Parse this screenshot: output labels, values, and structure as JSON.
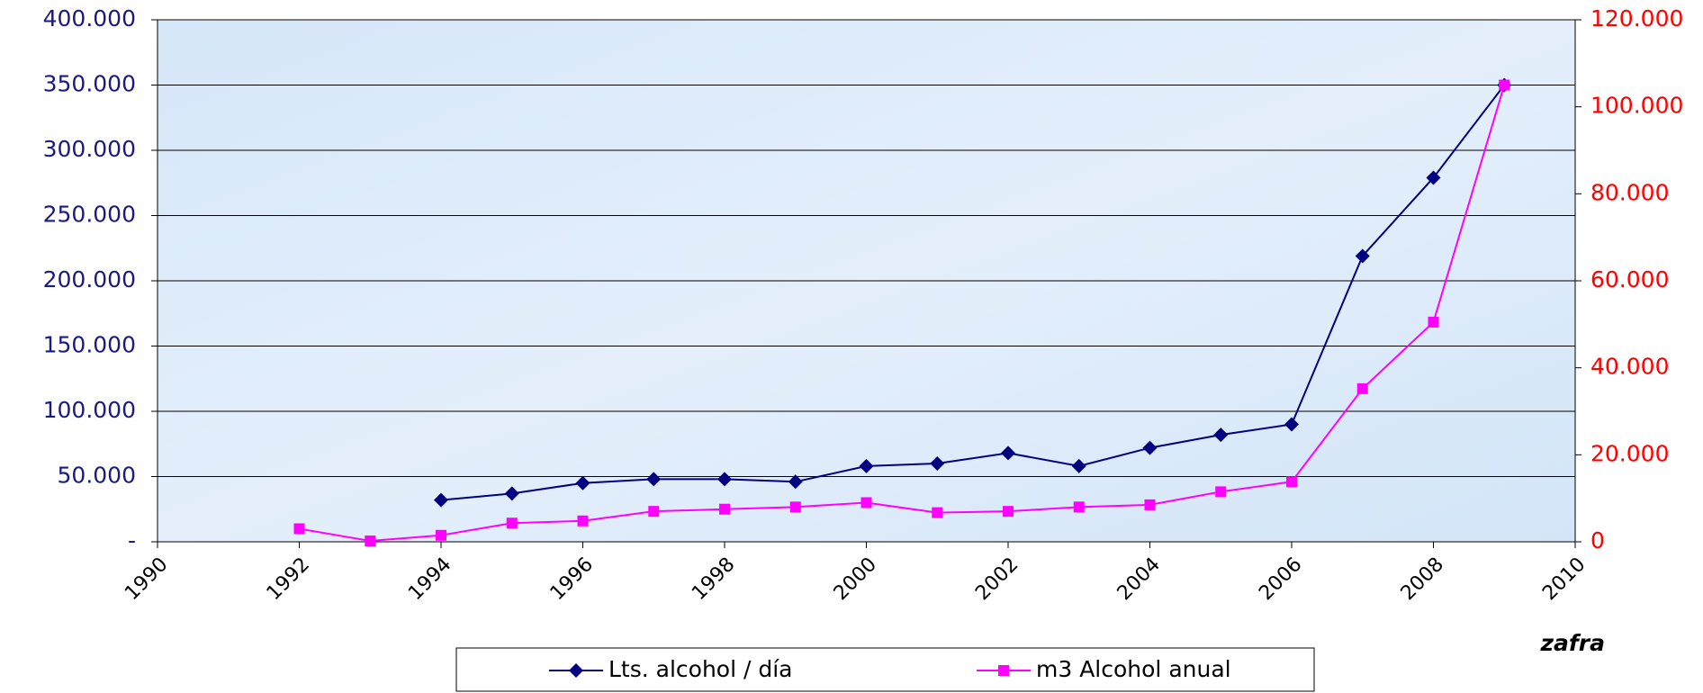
{
  "chart_data": {
    "type": "line",
    "x_label": "zafra",
    "xlim": [
      1990,
      2010
    ],
    "xticks": [
      1990,
      1992,
      1994,
      1996,
      1998,
      2000,
      2002,
      2004,
      2006,
      2008,
      2010
    ],
    "ylim": [
      0,
      400000
    ],
    "yticks": [
      {
        "value": 0,
        "label": "-"
      },
      {
        "value": 50000,
        "label": "50.000"
      },
      {
        "value": 100000,
        "label": "100.000"
      },
      {
        "value": 150000,
        "label": "150.000"
      },
      {
        "value": 200000,
        "label": "200.000"
      },
      {
        "value": 250000,
        "label": "250.000"
      },
      {
        "value": 300000,
        "label": "300.000"
      },
      {
        "value": 350000,
        "label": "350.000"
      },
      {
        "value": 400000,
        "label": "400.000"
      }
    ],
    "y2lim": [
      0,
      120000
    ],
    "y2ticks": [
      0,
      {
        "value": 20000,
        "label": "20.000"
      },
      {
        "value": 40000,
        "label": "40.000"
      },
      {
        "value": 60000,
        "label": "60.000"
      },
      {
        "value": 80000,
        "label": "80.000"
      },
      {
        "value": 100000,
        "label": "100.000"
      },
      {
        "value": 120000,
        "label": "120.000"
      }
    ],
    "grid": true,
    "legend": "bottom",
    "series": [
      {
        "name": "Lts. alcohol / día",
        "color": "#000080",
        "marker": "diamond",
        "x": [
          1994,
          1995,
          1996,
          1997,
          1998,
          1999,
          2000,
          2001,
          2002,
          2003,
          2004,
          2005,
          2006,
          2007,
          2008,
          2009
        ],
        "values": [
          32000,
          37000,
          45000,
          48000,
          48000,
          46000,
          58000,
          60000,
          68000,
          58000,
          72000,
          82000,
          90000,
          219000,
          279000,
          350000
        ]
      },
      {
        "name": "m3 Alcohol anual",
        "color": "#ff00ff",
        "marker": "square",
        "axis": "y2",
        "x": [
          1992,
          1993,
          1994,
          1995,
          1996,
          1997,
          1998,
          1999,
          2000,
          2001,
          2002,
          2003,
          2004,
          2005,
          2006,
          2007,
          2008,
          2009
        ],
        "values": [
          3000,
          200,
          1500,
          4300,
          4800,
          7000,
          7500,
          8000,
          9000,
          6700,
          7000,
          8000,
          8500,
          11500,
          13800,
          35200,
          50500,
          105000
        ]
      }
    ]
  }
}
